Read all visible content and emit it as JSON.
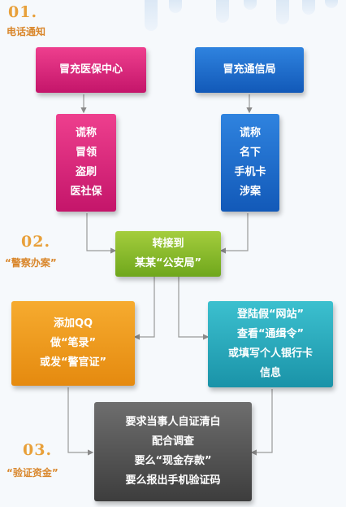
{
  "steps": [
    {
      "num": "01.",
      "label": "电话通知"
    },
    {
      "num": "02.",
      "label": "“警察办案”"
    },
    {
      "num": "03.",
      "label": "“验证资金”"
    }
  ],
  "boxes": {
    "impersonate_medical": "冒充医保中心",
    "impersonate_telecom": "冒充通信局",
    "claim_medical": [
      "谎称",
      "冒领",
      "盗刷",
      "医社保"
    ],
    "claim_telecom": [
      "谎称",
      "名下",
      "手机卡",
      "涉案"
    ],
    "transfer": [
      "转接到",
      "某某“公安局”"
    ],
    "add_qq": [
      "添加QQ",
      "做“笔录”",
      "或发“警官证”"
    ],
    "fake_site": [
      "登陆假“网站”",
      "查看“通缉令”",
      "或填写个人银行卡",
      "信息"
    ],
    "demand": [
      "要求当事人自证清白",
      "配合调查",
      "要么“现金存款”",
      "要么报出手机验证码"
    ]
  },
  "colors": {
    "pink": "#e02a7e",
    "blue": "#1f6fcf",
    "green": "#8bbb2c",
    "orange": "#f09a1f",
    "teal": "#28a8bb",
    "gray": "#555555",
    "accent": "#e8a03a"
  }
}
